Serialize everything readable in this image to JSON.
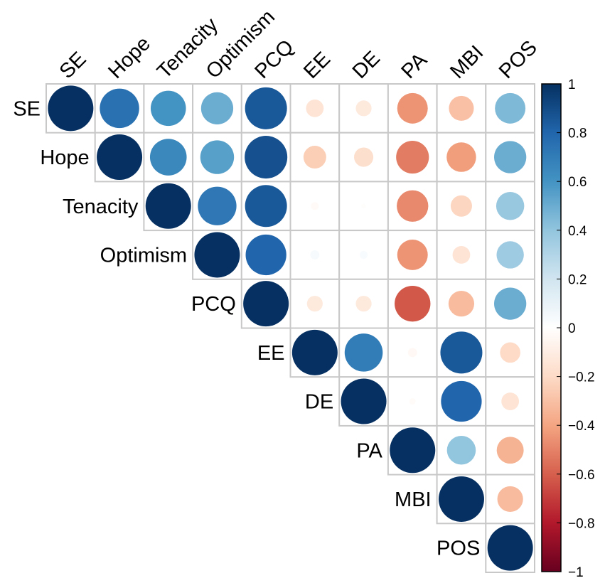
{
  "chart_data": {
    "type": "heatmap",
    "subtype": "correlation-matrix-upper-circles",
    "variables": [
      "SE",
      "Hope",
      "Tenacity",
      "Optimism",
      "PCQ",
      "EE",
      "DE",
      "PA",
      "MBI",
      "POS"
    ],
    "matrix": [
      [
        1.0,
        0.75,
        0.6,
        0.5,
        0.85,
        -0.15,
        -0.12,
        -0.45,
        -0.3,
        0.45
      ],
      [
        0.75,
        1.0,
        0.65,
        0.55,
        0.88,
        -0.25,
        -0.18,
        -0.52,
        -0.42,
        0.5
      ],
      [
        0.6,
        0.65,
        1.0,
        0.72,
        0.85,
        -0.03,
        -0.01,
        -0.48,
        -0.22,
        0.38
      ],
      [
        0.5,
        0.55,
        0.72,
        1.0,
        0.8,
        0.04,
        0.03,
        -0.45,
        -0.15,
        0.36
      ],
      [
        0.85,
        0.88,
        0.85,
        0.8,
        1.0,
        -0.12,
        -0.12,
        -0.62,
        -0.32,
        0.5
      ],
      [
        -0.15,
        -0.25,
        -0.03,
        0.04,
        -0.12,
        1.0,
        0.7,
        -0.04,
        0.85,
        -0.2
      ],
      [
        -0.12,
        -0.18,
        -0.01,
        0.03,
        -0.12,
        0.7,
        1.0,
        -0.02,
        0.8,
        -0.15
      ],
      [
        -0.45,
        -0.52,
        -0.48,
        -0.45,
        -0.62,
        -0.04,
        -0.02,
        1.0,
        0.4,
        -0.35
      ],
      [
        -0.3,
        -0.42,
        -0.22,
        -0.15,
        -0.32,
        0.85,
        0.8,
        0.4,
        1.0,
        -0.32
      ],
      [
        0.45,
        0.5,
        0.38,
        0.36,
        0.5,
        -0.2,
        -0.15,
        -0.35,
        -0.32,
        1.0
      ]
    ],
    "colorbar": {
      "range": [
        -1,
        1
      ],
      "ticks": [
        "1",
        "0.8",
        "0.6",
        "0.4",
        "0.2",
        "0",
        "−0.2",
        "−0.4",
        "−0.6",
        "−0.8",
        "−1"
      ],
      "colors": [
        "#053061",
        "#2166AC",
        "#4393C3",
        "#92C5DE",
        "#D1E5F0",
        "#FFFFFF",
        "#FDDBC7",
        "#F4A582",
        "#D6604D",
        "#B2182B",
        "#67001F"
      ]
    },
    "colors": {
      "grid": "#c8c8c8",
      "border": "#000000"
    }
  }
}
